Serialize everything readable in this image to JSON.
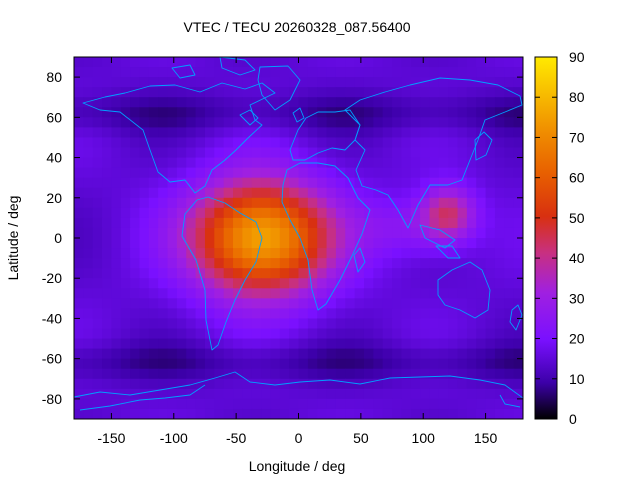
{
  "chart_data": {
    "type": "heatmap",
    "title": "VTEC / TECU 20260328_087.56400",
    "xlabel": "Longitude / deg",
    "ylabel": "Latitude / deg",
    "xlim": [
      -180,
      180
    ],
    "ylim": [
      -90,
      90
    ],
    "xticks": [
      -150,
      -100,
      -50,
      0,
      50,
      100,
      150
    ],
    "yticks": [
      -80,
      -60,
      -40,
      -20,
      0,
      20,
      40,
      60,
      80
    ],
    "colorbar": {
      "range": [
        0,
        90
      ],
      "ticks": [
        0,
        10,
        20,
        30,
        40,
        50,
        60,
        70,
        80,
        90
      ],
      "colors": [
        "#000000",
        "#5a00d0",
        "#8c20ff",
        "#c030a0",
        "#e04020",
        "#f08000",
        "#ffe000"
      ]
    },
    "peaks": [
      {
        "lon": -30,
        "lat": 0,
        "vtec": 78
      },
      {
        "lon": 120,
        "lat": 12,
        "vtec": 55
      }
    ],
    "background_vtec": 15,
    "overlay": "coastlines",
    "coastline_color": "#00a0ff",
    "grid": false
  }
}
